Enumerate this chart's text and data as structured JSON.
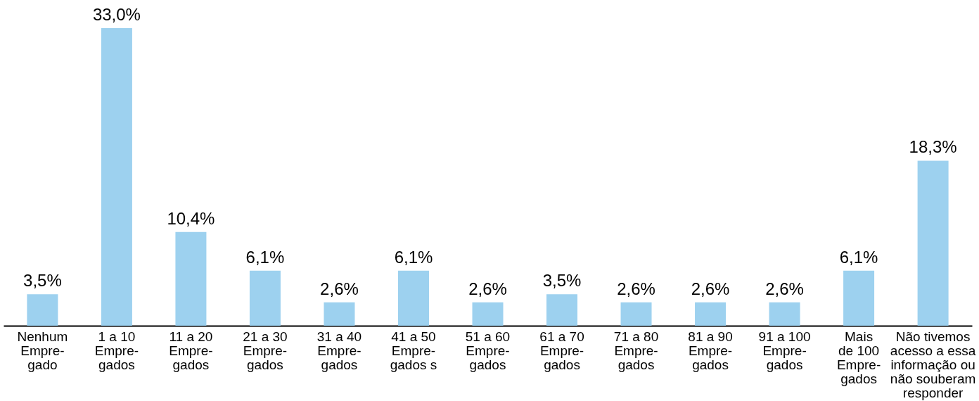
{
  "chart_data": {
    "type": "bar",
    "categories": [
      "Nenhum\nEmpre-\ngado",
      "1 a 10\nEmpre-\ngados",
      "11 a 20\nEmpre-\ngados",
      "21 a 30\nEmpre-\ngados",
      "31 a 40\nEmpre-\ngados",
      "41 a 50\nEmpre-\ngados s",
      "51 a 60\nEmpre-\ngados",
      "61 a 70\nEmpre-\ngados",
      "71 a 80\nEmpre-\ngados",
      "81 a 90\nEmpre-\ngados",
      "91 a 100\nEmpre-\ngados",
      "Mais\nde 100\nEmpre-\ngados",
      "Não tivemos\nacesso a essa\ninformação ou\nnão souberam\nresponder"
    ],
    "values": [
      3.5,
      33.0,
      10.4,
      6.1,
      2.6,
      6.1,
      2.6,
      3.5,
      2.6,
      2.6,
      2.6,
      6.1,
      18.3
    ],
    "value_labels": [
      "3,5%",
      "33,0%",
      "10,4%",
      "6,1%",
      "2,6%",
      "6,1%",
      "2,6%",
      "3,5%",
      "2,6%",
      "2,6%",
      "2,6%",
      "6,1%",
      "18,3%"
    ],
    "color": "#9dd1ef",
    "grid": false
  }
}
